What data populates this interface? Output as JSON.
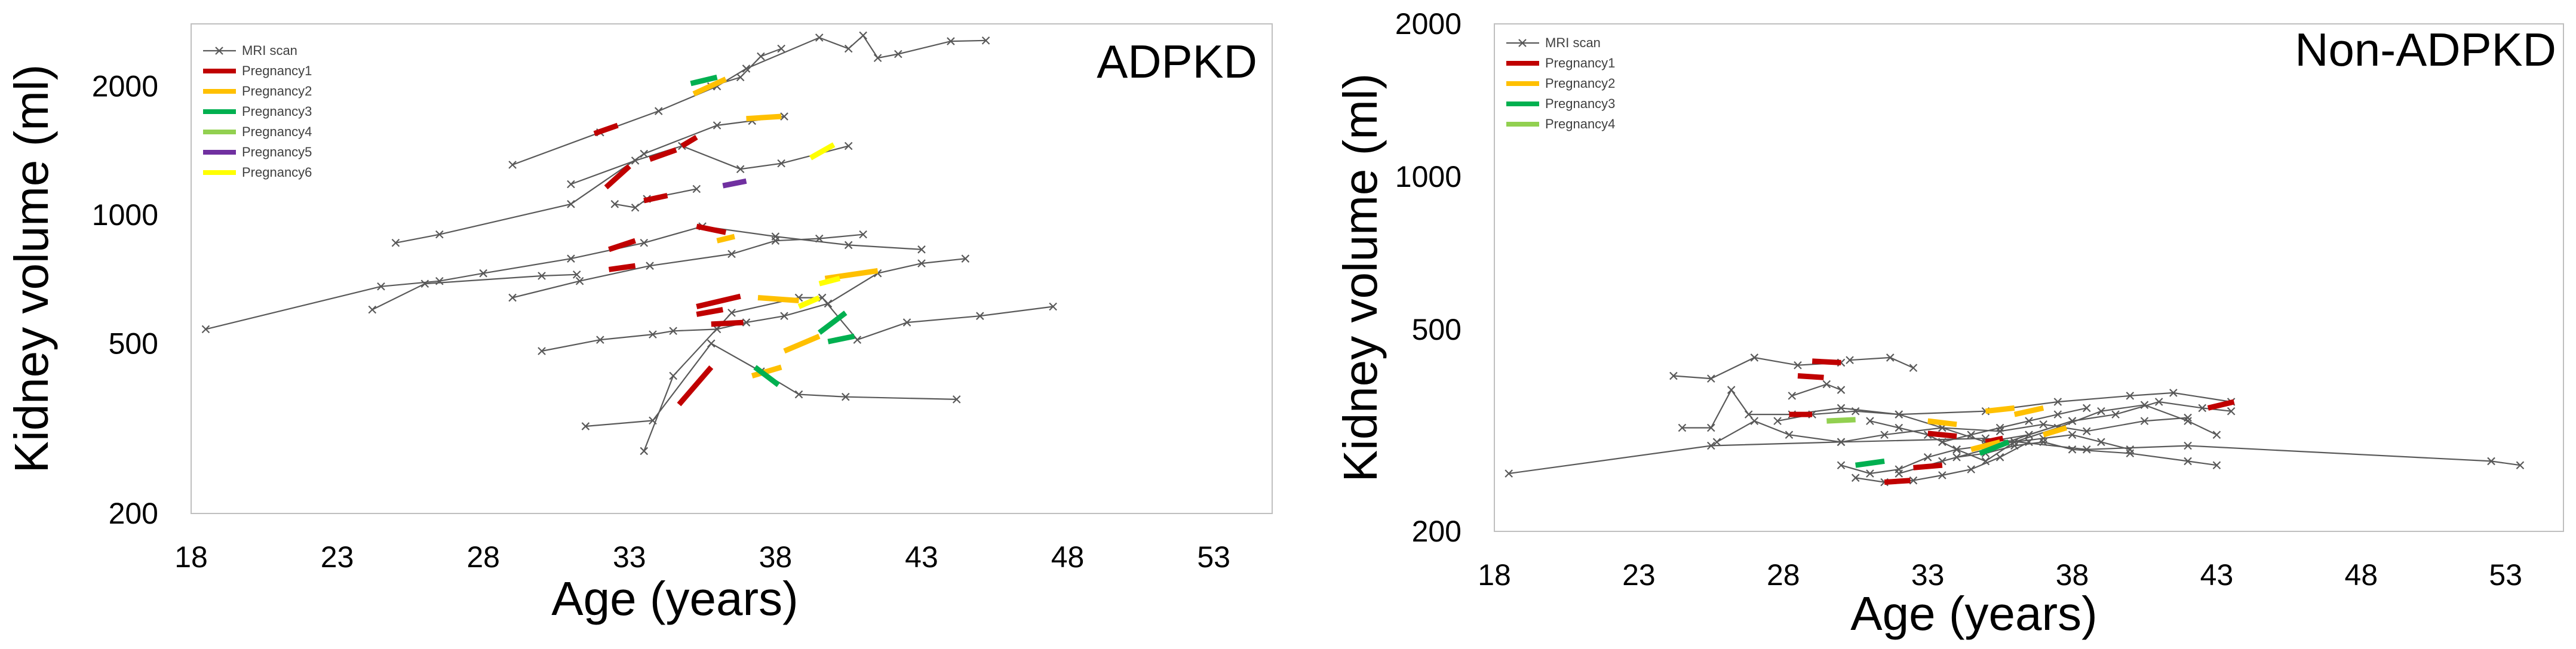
{
  "chart_data": [
    {
      "type": "line",
      "title": "ADPKD",
      "xlabel": "Age (years)",
      "ylabel": "Kidney volume (ml)",
      "xlim": [
        18,
        55
      ],
      "ylim": [
        200,
        2800
      ],
      "yscale": "log",
      "xticks": [
        "18",
        "23",
        "28",
        "33",
        "38",
        "43",
        "48",
        "53"
      ],
      "yticks": [
        "200",
        "500",
        "1000",
        "2000"
      ],
      "grid": false,
      "legend_position": "top-left",
      "marker_series_label": "MRI scan",
      "legend": [
        {
          "label": "MRI scan",
          "color": "#595959"
        },
        {
          "label": "Pregnancy1",
          "color": "#c00000"
        },
        {
          "label": "Pregnancy2",
          "color": "#ffc000"
        },
        {
          "label": "Pregnancy3",
          "color": "#00b050"
        },
        {
          "label": "Pregnancy4",
          "color": "#92d050"
        },
        {
          "label": "Pregnancy5",
          "color": "#7030a0"
        },
        {
          "label": "Pregnancy6",
          "color": "#ffff00"
        }
      ],
      "series": [
        {
          "x": [
            18.5,
            24.5,
            26.5,
            28,
            31,
            33.5,
            35.5,
            38,
            40.5,
            43
          ],
          "y": [
            540,
            680,
            700,
            730,
            790,
            860,
            940,
            890,
            850,
            830
          ]
        },
        {
          "x": [
            25,
            26.5,
            31,
            33.5,
            36,
            37.2,
            38.3
          ],
          "y": [
            860,
            900,
            1060,
            1390,
            1620,
            1660,
            1700
          ]
        },
        {
          "x": [
            29,
            32,
            34,
            36,
            37,
            39.5,
            40.5,
            41,
            41.5,
            42.2,
            44,
            45.2
          ],
          "y": [
            1310,
            1560,
            1750,
            2000,
            2200,
            2600,
            2450,
            2630,
            2330,
            2380,
            2550,
            2560
          ]
        },
        {
          "x": [
            32.5,
            33.2,
            33.6,
            35.3
          ],
          "y": [
            1060,
            1040,
            1090,
            1150
          ]
        },
        {
          "x": [
            31,
            33.2,
            34.8,
            36.8,
            38.2,
            40.5
          ],
          "y": [
            1180,
            1340,
            1450,
            1280,
            1320,
            1450
          ]
        },
        {
          "x": [
            29,
            31.3,
            33.7,
            36.5,
            38,
            39.5,
            41
          ],
          "y": [
            640,
            700,
            760,
            810,
            870,
            880,
            900
          ]
        },
        {
          "x": [
            30,
            32,
            33.8,
            34.5,
            36,
            37,
            38.3,
            39.8,
            41.5,
            43,
            44.5
          ],
          "y": [
            480,
            510,
            525,
            535,
            540,
            560,
            580,
            620,
            730,
            770,
            790
          ]
        },
        {
          "x": [
            24.2,
            26,
            30,
            31.2
          ],
          "y": [
            600,
            690,
            720,
            725
          ]
        },
        {
          "x": [
            33.5,
            34.5,
            36.5,
            38.8,
            39.6,
            40.8,
            42.5,
            45,
            47.5
          ],
          "y": [
            280,
            420,
            590,
            640,
            640,
            510,
            560,
            580,
            610
          ]
        },
        {
          "x": [
            31.5,
            33.8,
            35.8,
            37.5,
            38.8,
            40.4,
            44.2
          ],
          "y": [
            320,
            330,
            500,
            430,
            380,
            375,
            370
          ]
        },
        {
          "x": [
            35.8,
            36.8,
            37.5,
            38.2
          ],
          "y": [
            2000,
            2100,
            2350,
            2450
          ]
        }
      ],
      "pregnancies": [
        {
          "pregnancy": "Pregnancy1",
          "x": [
            31.8,
            32.6
          ],
          "y": [
            1550,
            1620
          ]
        },
        {
          "pregnancy": "Pregnancy1",
          "x": [
            33.7,
            34.6
          ],
          "y": [
            1350,
            1420
          ]
        },
        {
          "pregnancy": "Pregnancy1",
          "x": [
            34.8,
            35.3
          ],
          "y": [
            1450,
            1520
          ]
        },
        {
          "pregnancy": "Pregnancy1",
          "x": [
            32.2,
            33
          ],
          "y": [
            1160,
            1300
          ]
        },
        {
          "pregnancy": "Pregnancy1",
          "x": [
            33.5,
            34.3
          ],
          "y": [
            1080,
            1110
          ]
        },
        {
          "pregnancy": "Pregnancy1",
          "x": [
            32.3,
            33.2
          ],
          "y": [
            830,
            870
          ]
        },
        {
          "pregnancy": "Pregnancy1",
          "x": [
            35.3,
            36.3
          ],
          "y": [
            940,
            910
          ]
        },
        {
          "pregnancy": "Pregnancy1",
          "x": [
            32.3,
            33.2
          ],
          "y": [
            745,
            760
          ]
        },
        {
          "pregnancy": "Pregnancy1",
          "x": [
            35.3,
            36.8
          ],
          "y": [
            610,
            645
          ]
        },
        {
          "pregnancy": "Pregnancy1",
          "x": [
            35.3,
            36.2
          ],
          "y": [
            585,
            600
          ]
        },
        {
          "pregnancy": "Pregnancy1",
          "x": [
            35.8,
            36.9
          ],
          "y": [
            555,
            560
          ]
        },
        {
          "pregnancy": "Pregnancy1",
          "x": [
            34.7,
            35.8
          ],
          "y": [
            360,
            440
          ]
        },
        {
          "pregnancy": "Pregnancy2",
          "x": [
            35.2,
            36.3
          ],
          "y": [
            1920,
            2080
          ]
        },
        {
          "pregnancy": "Pregnancy2",
          "x": [
            37,
            38.2
          ],
          "y": [
            1680,
            1700
          ]
        },
        {
          "pregnancy": "Pregnancy2",
          "x": [
            36,
            36.6
          ],
          "y": [
            870,
            890
          ]
        },
        {
          "pregnancy": "Pregnancy2",
          "x": [
            37.4,
            38.8
          ],
          "y": [
            640,
            630
          ]
        },
        {
          "pregnancy": "Pregnancy2",
          "x": [
            39.7,
            41.5
          ],
          "y": [
            710,
            740
          ]
        },
        {
          "pregnancy": "Pregnancy2",
          "x": [
            37.2,
            38.2
          ],
          "y": [
            420,
            440
          ]
        },
        {
          "pregnancy": "Pregnancy2",
          "x": [
            38.3,
            39.5
          ],
          "y": [
            480,
            520
          ]
        },
        {
          "pregnancy": "Pregnancy3",
          "x": [
            35.1,
            36
          ],
          "y": [
            2030,
            2100
          ]
        },
        {
          "pregnancy": "Pregnancy3",
          "x": [
            37.3,
            38.1
          ],
          "y": [
            440,
            400
          ]
        },
        {
          "pregnancy": "Pregnancy3",
          "x": [
            39.5,
            40.4
          ],
          "y": [
            530,
            590
          ]
        },
        {
          "pregnancy": "Pregnancy3",
          "x": [
            39.8,
            40.7
          ],
          "y": [
            505,
            520
          ]
        },
        {
          "pregnancy": "Pregnancy5",
          "x": [
            36.2,
            37
          ],
          "y": [
            1170,
            1200
          ]
        },
        {
          "pregnancy": "Pregnancy6",
          "x": [
            39.2,
            40
          ],
          "y": [
            1360,
            1460
          ]
        },
        {
          "pregnancy": "Pregnancy6",
          "x": [
            38.8,
            39.5
          ],
          "y": [
            610,
            640
          ]
        },
        {
          "pregnancy": "Pregnancy6",
          "x": [
            39.5,
            40.2
          ],
          "y": [
            690,
            710
          ]
        }
      ]
    },
    {
      "type": "line",
      "title": "Non-ADPKD",
      "xlabel": "Age (years)",
      "ylabel": "Kidney volume (ml)",
      "xlim": [
        18,
        55
      ],
      "ylim": [
        200,
        2000
      ],
      "yscale": "log",
      "xticks": [
        "18",
        "23",
        "28",
        "33",
        "38",
        "43",
        "48",
        "53"
      ],
      "yticks": [
        "200",
        "500",
        "1000",
        "2000"
      ],
      "grid": false,
      "legend_position": "top-left",
      "marker_series_label": "MRI scan",
      "legend": [
        {
          "label": "MRI scan",
          "color": "#595959"
        },
        {
          "label": "Pregnancy1",
          "color": "#c00000"
        },
        {
          "label": "Pregnancy2",
          "color": "#ffc000"
        },
        {
          "label": "Pregnancy3",
          "color": "#00b050"
        },
        {
          "label": "Pregnancy4",
          "color": "#92d050"
        }
      ],
      "series": [
        {
          "x": [
            18.5,
            25.5,
            30,
            35,
            38.5,
            42,
            52.5,
            53.5
          ],
          "y": [
            260,
            295,
            300,
            305,
            290,
            295,
            275,
            270
          ]
        },
        {
          "x": [
            24.2,
            25.5,
            27,
            28.5,
            30
          ],
          "y": [
            405,
            400,
            440,
            425,
            430
          ]
        },
        {
          "x": [
            30.3,
            31.7,
            32.5
          ],
          "y": [
            435,
            440,
            420
          ]
        },
        {
          "x": [
            28.3,
            29.5,
            30
          ],
          "y": [
            370,
            390,
            380
          ]
        },
        {
          "x": [
            24.5,
            25.5,
            26.2,
            26.8,
            28.3,
            30,
            32,
            35,
            37.5,
            40,
            41.5,
            43.5
          ],
          "y": [
            320,
            320,
            380,
            340,
            340,
            350,
            340,
            345,
            360,
            370,
            375,
            360
          ]
        },
        {
          "x": [
            25.7,
            27,
            28.2,
            30,
            31.5,
            33.5,
            35.5,
            37,
            38.5,
            40.5,
            42
          ],
          "y": [
            300,
            330,
            310,
            300,
            310,
            320,
            315,
            325,
            315,
            330,
            335
          ]
        },
        {
          "x": [
            27.8,
            29,
            30.5,
            32,
            33.5,
            35,
            36.5,
            38,
            39.5,
            41,
            42.5,
            43.5
          ],
          "y": [
            330,
            340,
            345,
            340,
            320,
            300,
            310,
            330,
            340,
            360,
            350,
            345
          ]
        },
        {
          "x": [
            30,
            31,
            32,
            33,
            34,
            35,
            36,
            37,
            38,
            39,
            40
          ],
          "y": [
            270,
            260,
            265,
            280,
            290,
            295,
            300,
            305,
            310,
            300,
            290
          ]
        },
        {
          "x": [
            30.5,
            31.5,
            32.5,
            33.5,
            34.5,
            35.5,
            36.5
          ],
          "y": [
            255,
            250,
            252,
            258,
            265,
            280,
            300
          ]
        },
        {
          "x": [
            31,
            32,
            33,
            34,
            35,
            36,
            37.5,
            39,
            40.5,
            42,
            43
          ],
          "y": [
            330,
            320,
            310,
            290,
            275,
            300,
            320,
            345,
            355,
            330,
            310
          ]
        },
        {
          "x": [
            32,
            33.5,
            35,
            36.5,
            38
          ],
          "y": [
            260,
            275,
            290,
            310,
            330
          ]
        },
        {
          "x": [
            33.5,
            34.5,
            35.5,
            36.5,
            37.5,
            38.5
          ],
          "y": [
            300,
            310,
            320,
            330,
            340,
            350
          ]
        },
        {
          "x": [
            34,
            35,
            36,
            37,
            38,
            40,
            42,
            43
          ],
          "y": [
            280,
            285,
            295,
            300,
            290,
            285,
            275,
            270
          ]
        }
      ],
      "pregnancies": [
        {
          "pregnancy": "Pregnancy1",
          "x": [
            29,
            30
          ],
          "y": [
            433,
            430
          ]
        },
        {
          "pregnancy": "Pregnancy1",
          "x": [
            28.5,
            29.4
          ],
          "y": [
            405,
            402
          ]
        },
        {
          "pregnancy": "Pregnancy1",
          "x": [
            28.2,
            29
          ],
          "y": [
            340,
            340
          ]
        },
        {
          "pregnancy": "Pregnancy1",
          "x": [
            33,
            34
          ],
          "y": [
            312,
            308
          ]
        },
        {
          "pregnancy": "Pregnancy1",
          "x": [
            32.5,
            33.5
          ],
          "y": [
            267,
            270
          ]
        },
        {
          "pregnancy": "Pregnancy1",
          "x": [
            31.5,
            32.4
          ],
          "y": [
            250,
            252
          ]
        },
        {
          "pregnancy": "Pregnancy1",
          "x": [
            42.7,
            43.6
          ],
          "y": [
            350,
            360
          ]
        },
        {
          "pregnancy": "Pregnancy1",
          "x": [
            35,
            35.6
          ],
          "y": [
            300,
            305
          ]
        },
        {
          "pregnancy": "Pregnancy2",
          "x": [
            33,
            34
          ],
          "y": [
            330,
            325
          ]
        },
        {
          "pregnancy": "Pregnancy2",
          "x": [
            34.5,
            35.5
          ],
          "y": [
            290,
            300
          ]
        },
        {
          "pregnancy": "Pregnancy2",
          "x": [
            36,
            37
          ],
          "y": [
            340,
            350
          ]
        },
        {
          "pregnancy": "Pregnancy2",
          "x": [
            37,
            37.8
          ],
          "y": [
            310,
            320
          ]
        },
        {
          "pregnancy": "Pregnancy2",
          "x": [
            35,
            36
          ],
          "y": [
            345,
            350
          ]
        },
        {
          "pregnancy": "Pregnancy3",
          "x": [
            30.5,
            31.5
          ],
          "y": [
            270,
            275
          ]
        },
        {
          "pregnancy": "Pregnancy3",
          "x": [
            34.8,
            35.8
          ],
          "y": [
            285,
            300
          ]
        },
        {
          "pregnancy": "Pregnancy4",
          "x": [
            29.5,
            30.5
          ],
          "y": [
            330,
            332
          ]
        }
      ]
    }
  ]
}
